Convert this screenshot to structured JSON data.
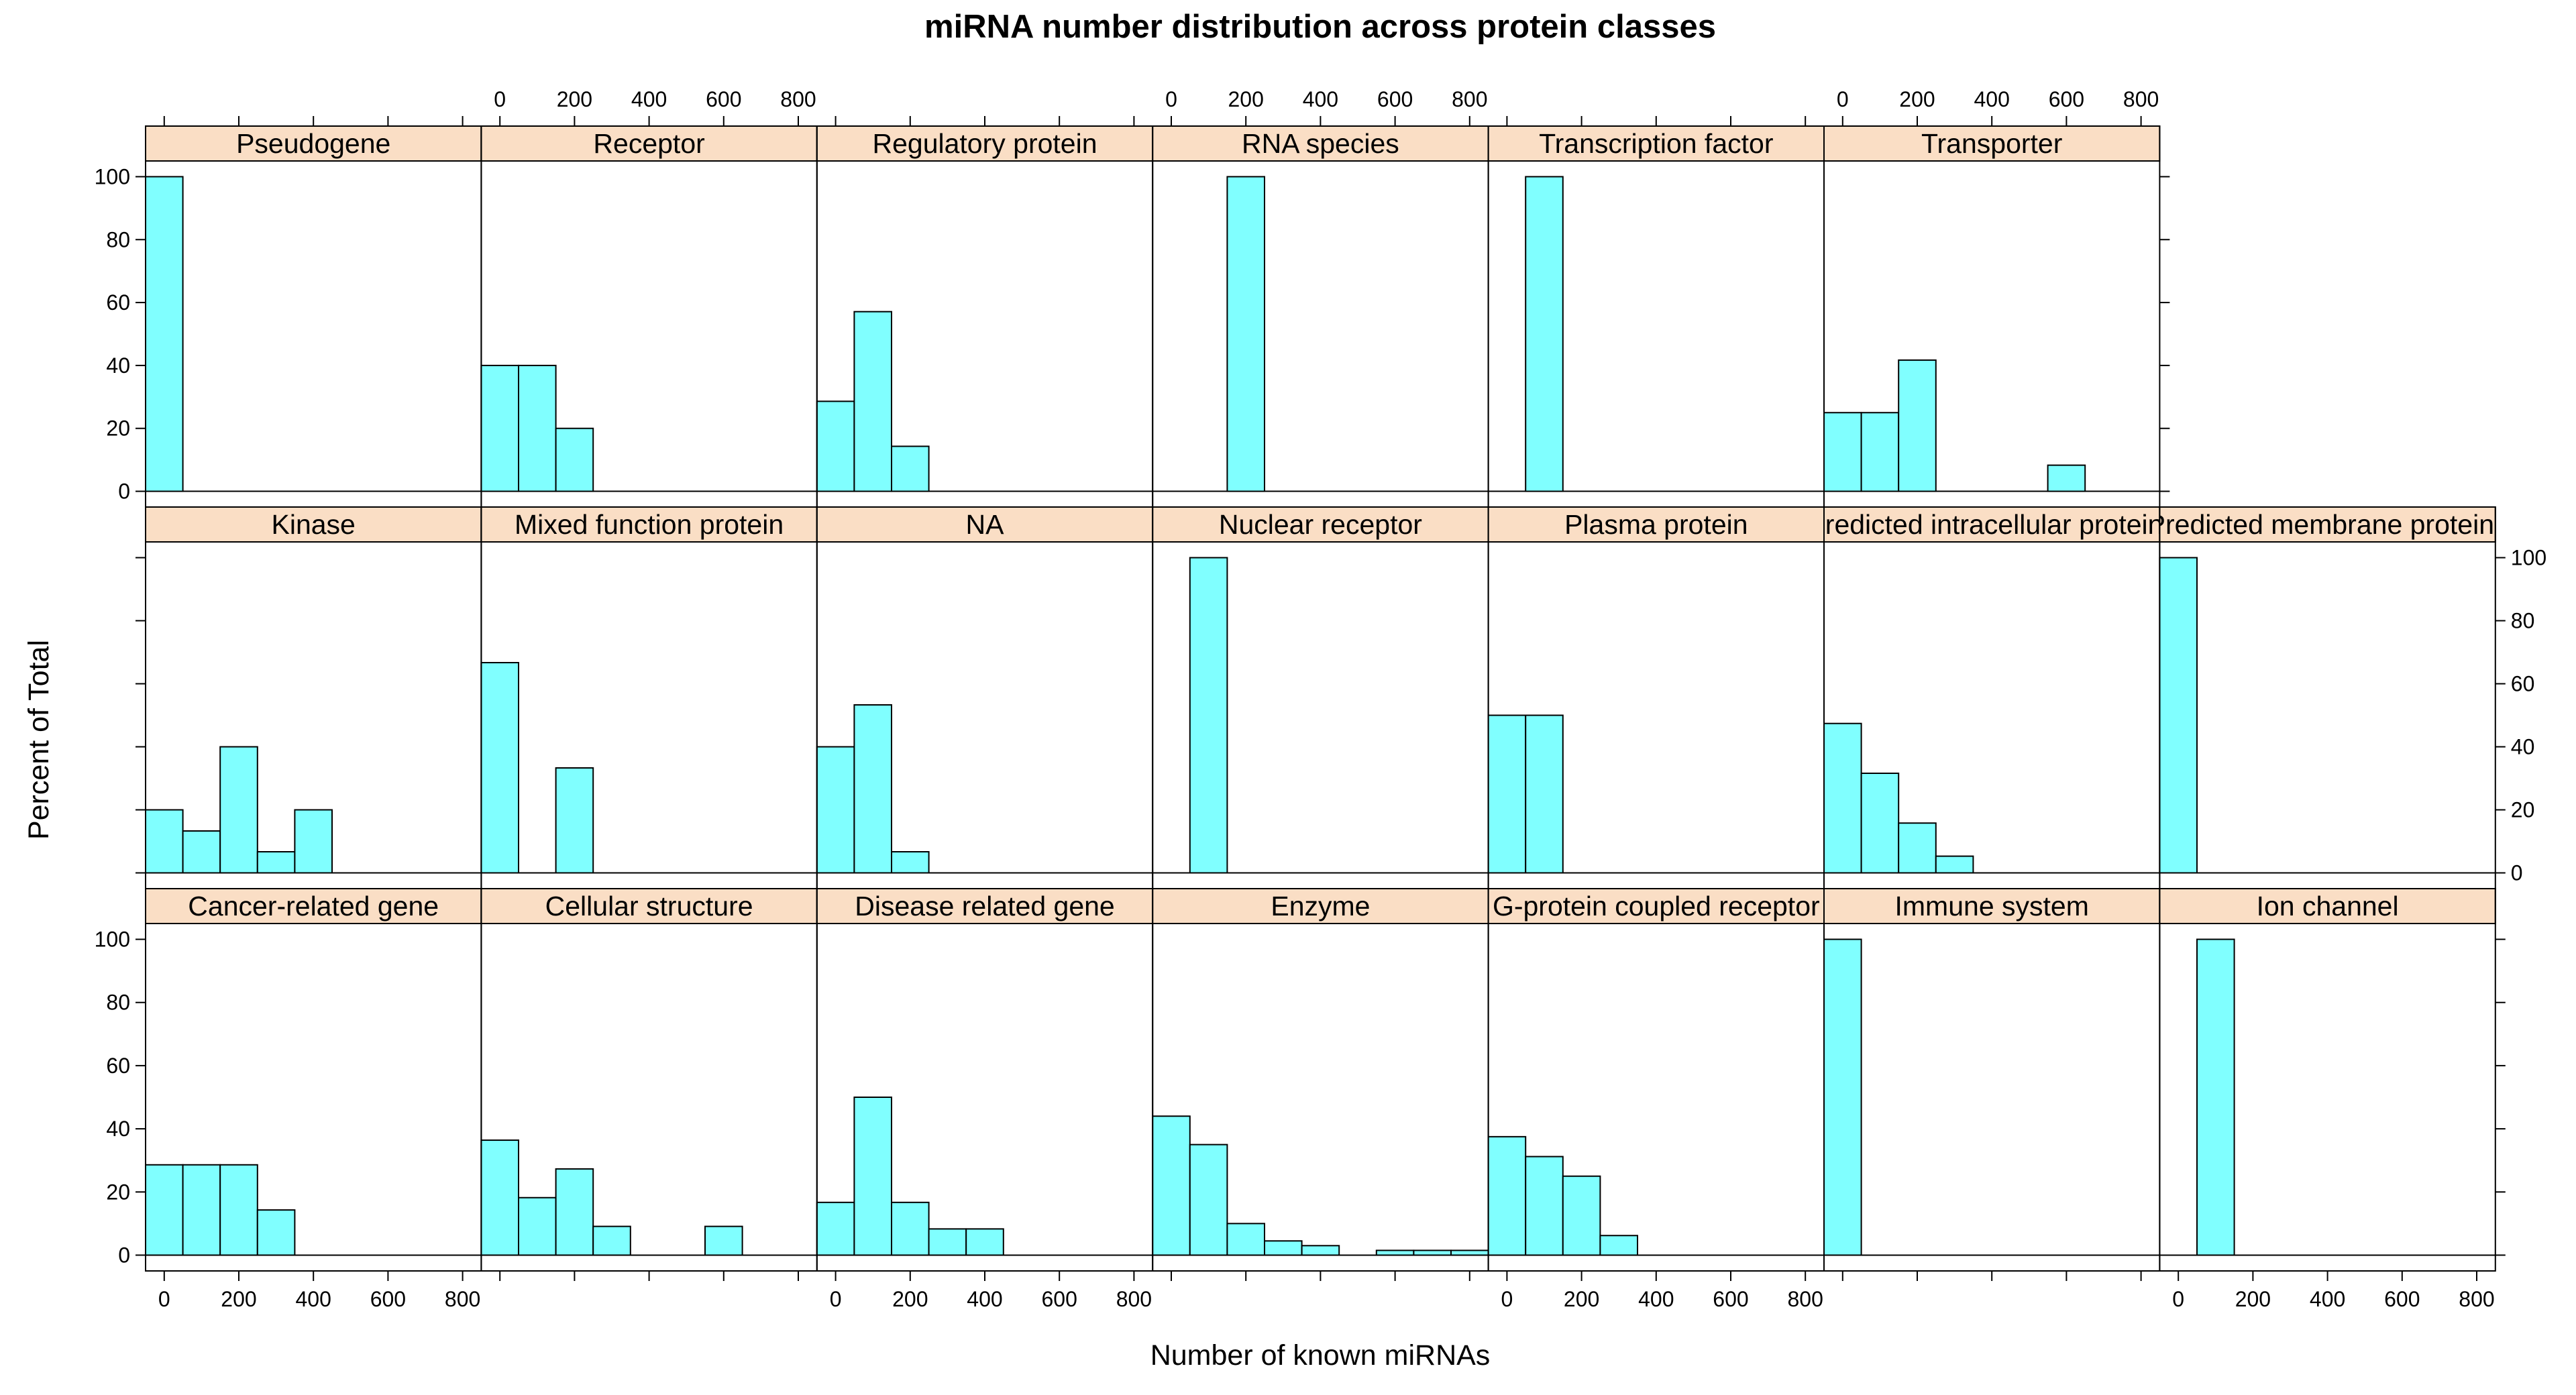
{
  "colors": {
    "bar_fill": "#80FFFF",
    "strip_fill": "#FADEC5",
    "stroke": "#000000"
  },
  "chart_data": {
    "type": "bar",
    "title": "miRNA number distribution across protein classes",
    "xlabel": "Number of known miRNAs",
    "ylabel": "Percent of Total",
    "xlim": [
      -50,
      850
    ],
    "ylim": [
      -5,
      105
    ],
    "x_ticks": [
      0,
      200,
      400,
      600,
      800
    ],
    "y_ticks": [
      0,
      20,
      40,
      60,
      80,
      100
    ],
    "bin_width": 100,
    "bin_edges": [
      -50,
      50,
      150,
      250,
      350,
      450,
      550,
      650,
      750,
      850
    ],
    "grid": false,
    "panels": [
      {
        "name": "Cancer-related gene",
        "row": 0,
        "col": 0,
        "bins": [
          {
            "x": 0,
            "pct": 28.6
          },
          {
            "x": 100,
            "pct": 28.6
          },
          {
            "x": 200,
            "pct": 28.6
          },
          {
            "x": 300,
            "pct": 14.3
          }
        ]
      },
      {
        "name": "Cellular structure",
        "row": 0,
        "col": 1,
        "bins": [
          {
            "x": 0,
            "pct": 36.4
          },
          {
            "x": 100,
            "pct": 18.2
          },
          {
            "x": 200,
            "pct": 27.3
          },
          {
            "x": 300,
            "pct": 9.1
          },
          {
            "x": 600,
            "pct": 9.1
          }
        ]
      },
      {
        "name": "Disease related gene",
        "row": 0,
        "col": 2,
        "bins": [
          {
            "x": 0,
            "pct": 16.7
          },
          {
            "x": 100,
            "pct": 50
          },
          {
            "x": 200,
            "pct": 16.7
          },
          {
            "x": 300,
            "pct": 8.3
          },
          {
            "x": 400,
            "pct": 8.3
          }
        ]
      },
      {
        "name": "Enzyme",
        "row": 0,
        "col": 3,
        "bins": [
          {
            "x": 0,
            "pct": 44
          },
          {
            "x": 100,
            "pct": 35
          },
          {
            "x": 200,
            "pct": 10
          },
          {
            "x": 300,
            "pct": 4.5
          },
          {
            "x": 400,
            "pct": 3
          },
          {
            "x": 600,
            "pct": 1.5
          },
          {
            "x": 700,
            "pct": 1.5
          },
          {
            "x": 800,
            "pct": 1.5
          }
        ]
      },
      {
        "name": "G-protein coupled receptor",
        "row": 0,
        "col": 4,
        "bins": [
          {
            "x": 0,
            "pct": 37.5
          },
          {
            "x": 100,
            "pct": 31.2
          },
          {
            "x": 200,
            "pct": 25
          },
          {
            "x": 300,
            "pct": 6.2
          }
        ]
      },
      {
        "name": "Immune system",
        "row": 0,
        "col": 5,
        "bins": [
          {
            "x": 0,
            "pct": 100
          }
        ]
      },
      {
        "name": "Ion channel",
        "row": 0,
        "col": 6,
        "bins": [
          {
            "x": 100,
            "pct": 100
          }
        ]
      },
      {
        "name": "Kinase",
        "row": 1,
        "col": 0,
        "bins": [
          {
            "x": 0,
            "pct": 20
          },
          {
            "x": 100,
            "pct": 13.3
          },
          {
            "x": 200,
            "pct": 40
          },
          {
            "x": 300,
            "pct": 6.7
          },
          {
            "x": 400,
            "pct": 20
          }
        ]
      },
      {
        "name": "Mixed function protein",
        "row": 1,
        "col": 1,
        "bins": [
          {
            "x": 0,
            "pct": 66.7
          },
          {
            "x": 200,
            "pct": 33.3
          }
        ]
      },
      {
        "name": "NA",
        "row": 1,
        "col": 2,
        "bins": [
          {
            "x": 0,
            "pct": 40
          },
          {
            "x": 100,
            "pct": 53.3
          },
          {
            "x": 200,
            "pct": 6.7
          }
        ]
      },
      {
        "name": "Nuclear receptor",
        "row": 1,
        "col": 3,
        "bins": [
          {
            "x": 100,
            "pct": 100
          }
        ]
      },
      {
        "name": "Plasma protein",
        "row": 1,
        "col": 4,
        "bins": [
          {
            "x": 0,
            "pct": 50
          },
          {
            "x": 100,
            "pct": 50
          }
        ]
      },
      {
        "name": "Predicted intracellular proteins",
        "row": 1,
        "col": 5,
        "bins": [
          {
            "x": 0,
            "pct": 47.4
          },
          {
            "x": 100,
            "pct": 31.6
          },
          {
            "x": 200,
            "pct": 15.8
          },
          {
            "x": 300,
            "pct": 5.3
          }
        ]
      },
      {
        "name": "Predicted membrane proteins",
        "row": 1,
        "col": 6,
        "bins": [
          {
            "x": 0,
            "pct": 100
          }
        ]
      },
      {
        "name": "Pseudogene",
        "row": 2,
        "col": 0,
        "bins": [
          {
            "x": 0,
            "pct": 100
          }
        ]
      },
      {
        "name": "Receptor",
        "row": 2,
        "col": 1,
        "bins": [
          {
            "x": 0,
            "pct": 40
          },
          {
            "x": 100,
            "pct": 40
          },
          {
            "x": 200,
            "pct": 20
          }
        ]
      },
      {
        "name": "Regulatory protein",
        "row": 2,
        "col": 2,
        "bins": [
          {
            "x": 0,
            "pct": 28.6
          },
          {
            "x": 100,
            "pct": 57.1
          },
          {
            "x": 200,
            "pct": 14.3
          }
        ]
      },
      {
        "name": "RNA species",
        "row": 2,
        "col": 3,
        "bins": [
          {
            "x": 200,
            "pct": 100
          }
        ]
      },
      {
        "name": "Transcription factor",
        "row": 2,
        "col": 4,
        "bins": [
          {
            "x": 100,
            "pct": 100
          }
        ]
      },
      {
        "name": "Transporter",
        "row": 2,
        "col": 5,
        "bins": [
          {
            "x": 0,
            "pct": 25
          },
          {
            "x": 100,
            "pct": 25
          },
          {
            "x": 200,
            "pct": 41.7
          },
          {
            "x": 600,
            "pct": 8.3
          }
        ]
      }
    ]
  }
}
